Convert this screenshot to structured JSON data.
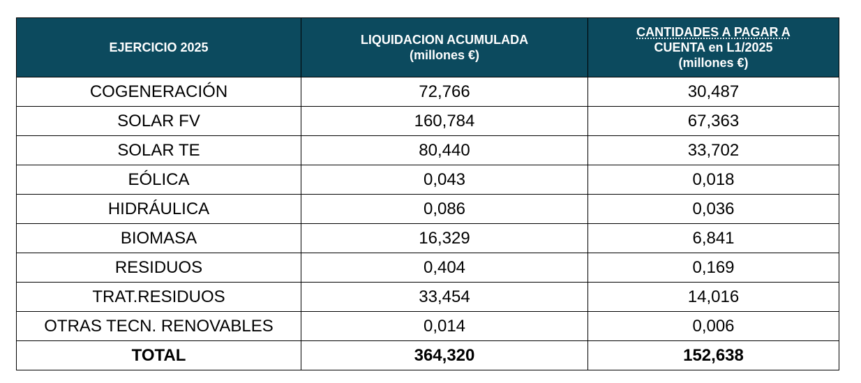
{
  "colors": {
    "header_bg": "#0c4a5e",
    "header_text": "#ffffff",
    "border": "#000000"
  },
  "header": {
    "col1": "EJERCICIO 2025",
    "col2_line1": "LIQUIDACION ACUMULADA",
    "col2_line2": "(millones €)",
    "col3_line1": "CANTIDADES A PAGAR A",
    "col3_line2": "CUENTA en L1/2025",
    "col3_line3": "(millones €)"
  },
  "rows": [
    {
      "tech": "COGENERACIÓN",
      "acumulada": "72,766",
      "pagar": "30,487"
    },
    {
      "tech": "SOLAR FV",
      "acumulada": "160,784",
      "pagar": "67,363"
    },
    {
      "tech": "SOLAR TE",
      "acumulada": "80,440",
      "pagar": "33,702"
    },
    {
      "tech": "EÓLICA",
      "acumulada": "0,043",
      "pagar": "0,018"
    },
    {
      "tech": "HIDRÁULICA",
      "acumulada": "0,086",
      "pagar": "0,036"
    },
    {
      "tech": "BIOMASA",
      "acumulada": "16,329",
      "pagar": "6,841"
    },
    {
      "tech": "RESIDUOS",
      "acumulada": "0,404",
      "pagar": "0,169"
    },
    {
      "tech": "TRAT.RESIDUOS",
      "acumulada": "33,454",
      "pagar": "14,016"
    },
    {
      "tech": "OTRAS TECN. RENOVABLES",
      "acumulada": "0,014",
      "pagar": "0,006"
    }
  ],
  "total": {
    "label": "TOTAL",
    "acumulada": "364,320",
    "pagar": "152,638"
  }
}
